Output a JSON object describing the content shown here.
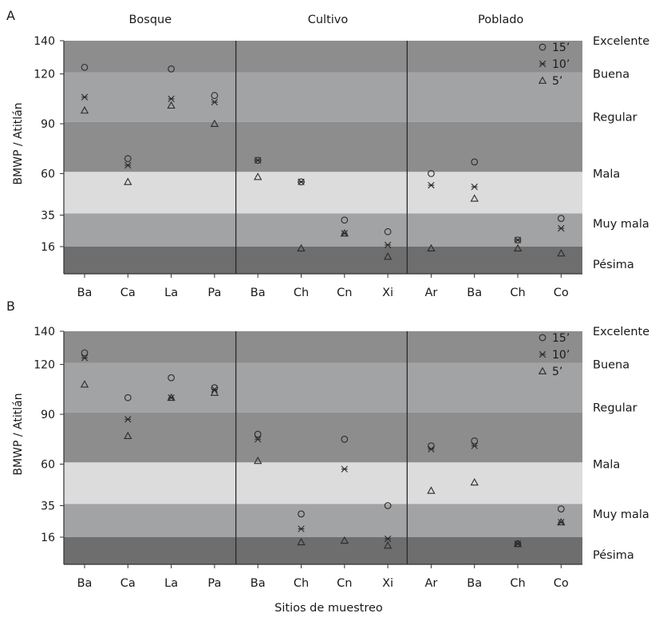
{
  "chart_data": {
    "type": "scatter",
    "xlabel": "Sitios de muestreo",
    "ylabel": "BMWP / Atitlán",
    "yticks": [
      16,
      35,
      60,
      90,
      120,
      140
    ],
    "groups": [
      {
        "name": "Bosque",
        "sites": [
          "Ba",
          "Ca",
          "La",
          "Pa"
        ]
      },
      {
        "name": "Cultivo",
        "sites": [
          "Ba",
          "Ch",
          "Cn",
          "Xi"
        ]
      },
      {
        "name": "Poblado",
        "sites": [
          "Ar",
          "Ba",
          "Ch",
          "Co"
        ]
      }
    ],
    "categories": [
      "Ba",
      "Ca",
      "La",
      "Pa",
      "Ba",
      "Ch",
      "Cn",
      "Xi",
      "Ar",
      "Ba",
      "Ch",
      "Co"
    ],
    "quality_classes": [
      {
        "label": "Excelente",
        "range": [
          121,
          140
        ],
        "color": "#8d8d8d"
      },
      {
        "label": "Buena",
        "range": [
          91,
          121
        ],
        "color": "#a2a3a5"
      },
      {
        "label": "Regular",
        "range": [
          61,
          91
        ],
        "color": "#8d8d8d"
      },
      {
        "label": "Mala",
        "range": [
          36,
          61
        ],
        "color": "#dcdcdc"
      },
      {
        "label": "Muy mala",
        "range": [
          16,
          36
        ],
        "color": "#a2a3a5"
      },
      {
        "label": "Pésima",
        "range": [
          0,
          16
        ],
        "color": "#6e6e6e"
      }
    ],
    "legend": {
      "position": "top-right",
      "entries": [
        {
          "label": "15’",
          "marker": "circle"
        },
        {
          "label": "10’",
          "marker": "asterisk"
        },
        {
          "label": "5’",
          "marker": "triangle"
        }
      ]
    },
    "panels": [
      {
        "letter": "A",
        "ylim": [
          -16,
          140
        ],
        "series": [
          {
            "marker": "circle",
            "values": [
              124,
              69,
              123,
              107,
              68,
              55,
              32,
              25,
              60,
              67,
              20,
              33
            ]
          },
          {
            "marker": "asterisk",
            "values": [
              106,
              65,
              105,
              103,
              68,
              55,
              24,
              17,
              53,
              52,
              20,
              27
            ]
          },
          {
            "marker": "triangle",
            "values": [
              98,
              55,
              101,
              90,
              58,
              15,
              24,
              10,
              15,
              45,
              15,
              12
            ]
          }
        ]
      },
      {
        "letter": "B",
        "ylim": [
          -16,
          140
        ],
        "series": [
          {
            "marker": "circle",
            "values": [
              127,
              100,
              112,
              106,
              78,
              30,
              75,
              35,
              71,
              74,
              12,
              33
            ]
          },
          {
            "marker": "asterisk",
            "values": [
              124,
              87,
              100,
              105,
              75,
              21,
              57,
              15,
              69,
              71,
              12,
              25
            ]
          },
          {
            "marker": "triangle",
            "values": [
              108,
              77,
              100,
              103,
              62,
              13,
              14,
              11,
              44,
              49,
              12,
              25
            ]
          }
        ]
      }
    ]
  }
}
